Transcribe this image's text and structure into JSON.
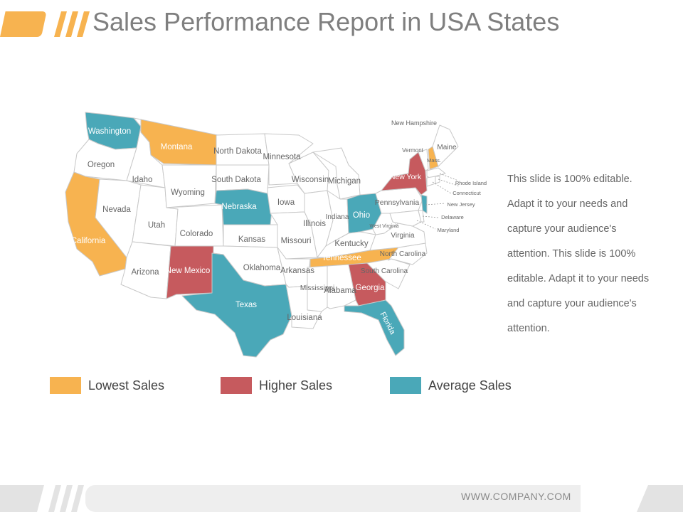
{
  "header": {
    "title": "Sales Performance Report in USA States"
  },
  "colors": {
    "lowest": "#f7b350",
    "higher": "#c65a5e",
    "average": "#4aa8b8",
    "base": "#ffffff",
    "border": "#c8c8c8",
    "text": "#666666"
  },
  "map": {
    "states": {
      "washington": "Washington",
      "oregon": "Oregon",
      "california": "California",
      "idaho": "Idaho",
      "nevada": "Nevada",
      "montana": "Montana",
      "wyoming": "Wyoming",
      "utah": "Utah",
      "arizona": "Arizona",
      "colorado": "Colorado",
      "new_mexico": "New Mexico",
      "north_dakota": "North Dakota",
      "south_dakota": "South Dakota",
      "nebraska": "Nebraska",
      "kansas": "Kansas",
      "oklahoma": "Oklahoma",
      "texas": "Texas",
      "minnesota": "Minnesota",
      "iowa": "Iowa",
      "missouri": "Missouri",
      "arkansas": "Arkansas",
      "louisiana": "Louisiana",
      "wisconsin": "Wisconsin",
      "illinois": "Illinois",
      "mississippi": "Mississippi",
      "michigan": "Michigan",
      "indiana": "Indiana",
      "kentucky": "Kentucky",
      "tennessee": "Tennessee",
      "alabama": "Alabama",
      "ohio": "Ohio",
      "georgia": "Georgia",
      "florida": "Florida",
      "west_virginia": "West Virginia",
      "virginia": "Virginia",
      "north_carolina": "North Carolina",
      "south_carolina": "South Carolina",
      "pennsylvania": "Pennsylvania",
      "new_york": "New York",
      "vermont": "Vermont",
      "new_hampshire": "New Hampshire",
      "maine": "Maine",
      "massachusetts": "Mass.",
      "rhode_island": "Rhode Island",
      "connecticut": "Connecticut",
      "new_jersey": "New Jersey",
      "delaware": "Delaware",
      "maryland": "Maryland"
    }
  },
  "side_text": "This slide is 100% editable. Adapt it to your needs and capture your audience's attention. This slide is 100% editable. Adapt it to your needs and capture your audience's attention.",
  "legend": {
    "lowest": "Lowest Sales",
    "higher": "Higher Sales",
    "average": "Average Sales"
  },
  "footer": {
    "url": "WWW.COMPANY.COM"
  }
}
